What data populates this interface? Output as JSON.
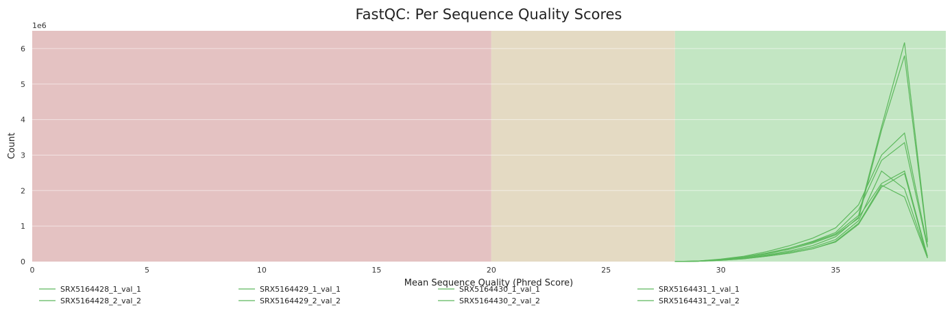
{
  "chart_data": {
    "type": "line",
    "title": "FastQC: Per Sequence Quality Scores",
    "xlabel": "Mean Sequence Quality (Phred Score)",
    "ylabel": "Count",
    "y_offset_label": "1e6",
    "xlim": [
      0,
      39.8
    ],
    "ylim": [
      0,
      6.5
    ],
    "x_ticks": [
      0,
      5,
      10,
      15,
      20,
      25,
      30,
      35
    ],
    "y_ticks": [
      0,
      1,
      2,
      3,
      4,
      5,
      6
    ],
    "grid": true,
    "legend_position": "bottom",
    "zones": [
      {
        "from": 0,
        "to": 20,
        "color": "#e4c2c2"
      },
      {
        "from": 20,
        "to": 28,
        "color": "#e4dac3"
      },
      {
        "from": 28,
        "to": 39.8,
        "color": "#c3e6c3"
      }
    ],
    "line_color": "#5cb85c",
    "x": [
      28,
      29,
      30,
      31,
      32,
      33,
      34,
      35,
      36,
      37,
      38,
      39
    ],
    "series": [
      {
        "name": "SRX5164428_1_val_1",
        "values": [
          0.002,
          0.01,
          0.04,
          0.09,
          0.17,
          0.27,
          0.4,
          0.62,
          1.15,
          2.55,
          2.05,
          0.12
        ]
      },
      {
        "name": "SRX5164428_2_val_2",
        "values": [
          0.002,
          0.01,
          0.05,
          0.1,
          0.19,
          0.3,
          0.45,
          0.7,
          1.25,
          2.2,
          2.55,
          0.15
        ]
      },
      {
        "name": "SRX5164429_1_val_1",
        "values": [
          0.003,
          0.015,
          0.07,
          0.15,
          0.28,
          0.45,
          0.66,
          0.95,
          1.6,
          3.0,
          3.62,
          0.45
        ]
      },
      {
        "name": "SRX5164429_2_val_2",
        "values": [
          0.003,
          0.012,
          0.06,
          0.13,
          0.24,
          0.38,
          0.57,
          0.82,
          1.45,
          2.85,
          3.35,
          0.4
        ]
      },
      {
        "name": "SRX5164430_1_val_1",
        "values": [
          0.003,
          0.015,
          0.06,
          0.13,
          0.24,
          0.38,
          0.55,
          0.78,
          1.3,
          3.8,
          6.17,
          0.6
        ]
      },
      {
        "name": "SRX5164430_2_val_2",
        "values": [
          0.003,
          0.014,
          0.055,
          0.12,
          0.22,
          0.35,
          0.52,
          0.75,
          1.22,
          3.7,
          5.8,
          0.55
        ]
      },
      {
        "name": "SRX5164431_1_val_1",
        "values": [
          0.002,
          0.009,
          0.035,
          0.08,
          0.15,
          0.24,
          0.36,
          0.55,
          1.05,
          2.1,
          2.48,
          0.1
        ]
      },
      {
        "name": "SRX5164431_2_val_2",
        "values": [
          0.002,
          0.009,
          0.035,
          0.08,
          0.15,
          0.24,
          0.36,
          0.57,
          1.08,
          2.15,
          1.82,
          0.1
        ]
      }
    ]
  }
}
